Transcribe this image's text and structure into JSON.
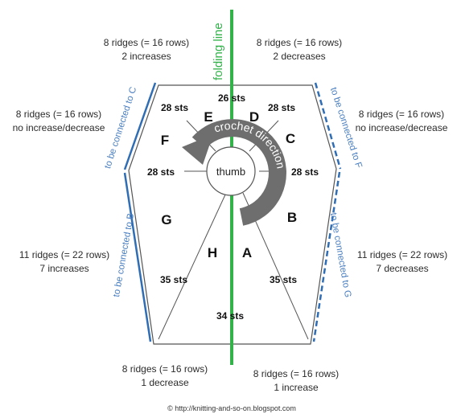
{
  "labels": {
    "folding_line": "folding line",
    "crochet_direction": "crochet direction",
    "thumb": "thumb",
    "copyright": "© http://knitting-and-so-on.blogspot.com"
  },
  "sections": [
    "A",
    "B",
    "C",
    "D",
    "E",
    "F",
    "G",
    "H"
  ],
  "stitches": {
    "top": "26 sts",
    "upper_left": "28 sts",
    "upper_right": "28 sts",
    "middle_left": "28 sts",
    "middle_right": "28 sts",
    "lower_left": "35 sts",
    "lower_right": "35 sts",
    "bottom": "34 sts"
  },
  "annotations": {
    "top_left": [
      "8 ridges (= 16 rows)",
      "2 increases"
    ],
    "top_right": [
      "8 ridges (= 16 rows)",
      "2 decreases"
    ],
    "upper_left": [
      "8 ridges (= 16 rows)",
      "no increase/decrease"
    ],
    "upper_right": [
      "8 ridges (= 16 rows)",
      "no increase/decrease"
    ],
    "lower_left": [
      "11 ridges (= 22 rows)",
      "7 increases"
    ],
    "lower_right": [
      "11 ridges (= 22 rows)",
      "7 decreases"
    ],
    "bottom_left": [
      "8 ridges (= 16 rows)",
      "1 decrease"
    ],
    "bottom_right": [
      "8 ridges (= 16 rows)",
      "1 increase"
    ]
  },
  "connections": {
    "upper_left": "to be connected to C",
    "lower_left": "to be connected to B",
    "upper_right": "to be connected to F",
    "lower_right": "to be connected to G"
  },
  "colors": {
    "folding_line": "#33b24a",
    "connection": "#2f6db5",
    "connection_text": "#4a7fc0",
    "arrow": "#6e6e6e",
    "outline": "#555555"
  }
}
